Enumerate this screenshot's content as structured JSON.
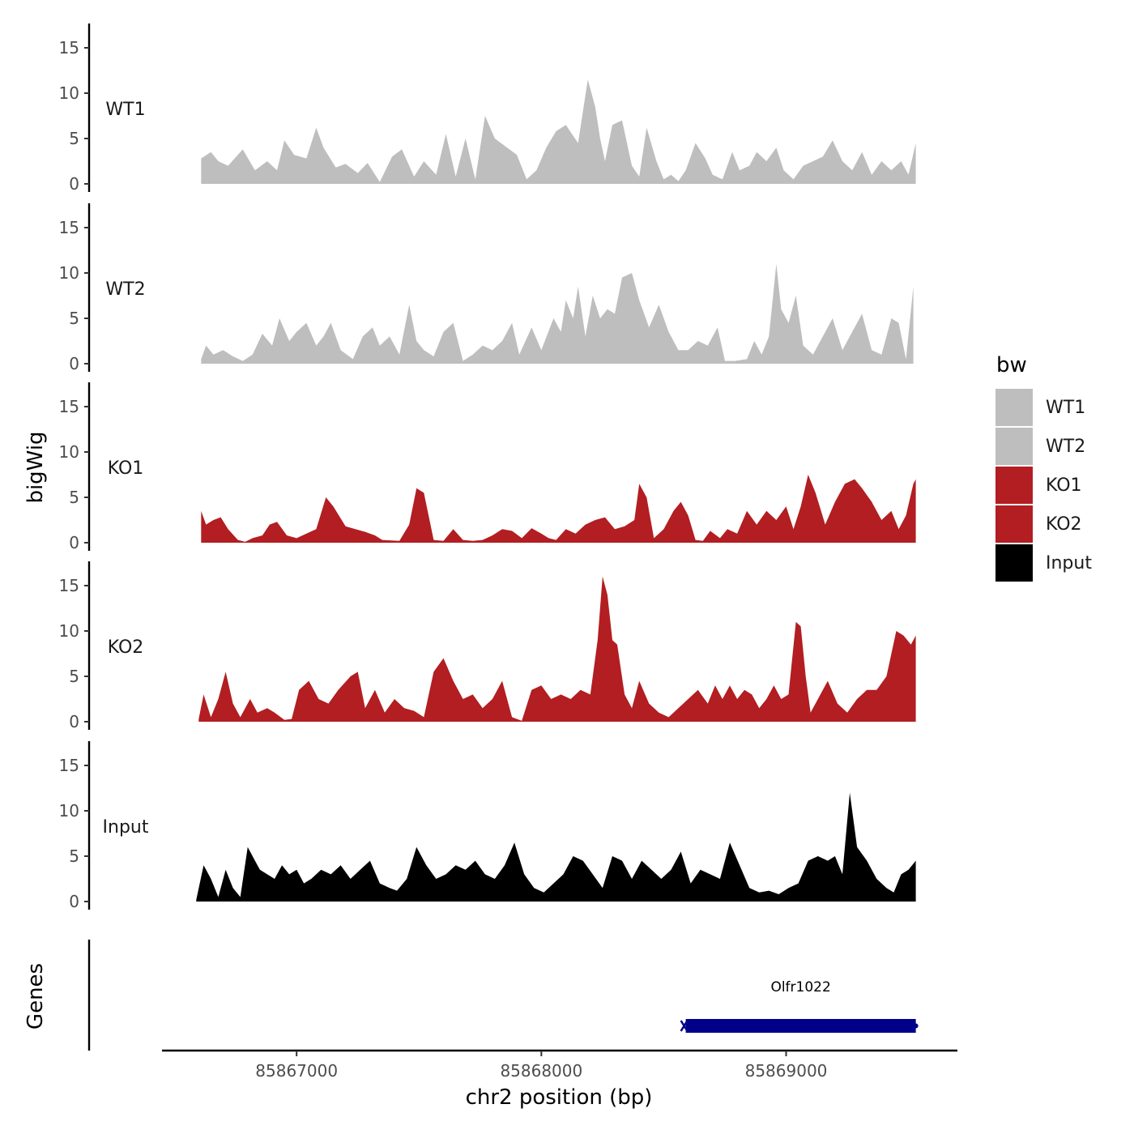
{
  "chart_data": {
    "type": "area",
    "ylabel": "bigWig",
    "xlabel": "chr2 position (bp)",
    "ylim": [
      0,
      17
    ],
    "yticks": [
      0,
      5,
      10,
      15
    ],
    "xlim": [
      85866450,
      85869700
    ],
    "xticks": [
      85867000,
      85868000,
      85869000
    ],
    "xtick_labels": [
      "85867000",
      "85868000",
      "85869000"
    ],
    "series": [
      {
        "name": "WT1",
        "color": "#bebebe",
        "x": [
          85866610,
          85866650,
          85866680,
          85866720,
          85866780,
          85866830,
          85866880,
          85866920,
          85866950,
          85866990,
          85867040,
          85867080,
          85867110,
          85867160,
          85867200,
          85867250,
          85867290,
          85867340,
          85867390,
          85867430,
          85867480,
          85867520,
          85867570,
          85867610,
          85867650,
          85867690,
          85867730,
          85867770,
          85867810,
          85867860,
          85867900,
          85867940,
          85867980,
          85868020,
          85868060,
          85868100,
          85868150,
          85868190,
          85868220,
          85868240,
          85868260,
          85868290,
          85868330,
          85868370,
          85868400,
          85868430,
          85868470,
          85868500,
          85868530,
          85868560,
          85868590,
          85868630,
          85868670,
          85868700,
          85868740,
          85868780,
          85868810,
          85868850,
          85868880,
          85868920,
          85868960,
          85868990,
          85869030,
          85869070,
          85869110,
          85869150,
          85869190,
          85869230,
          85869270,
          85869310,
          85869350,
          85869390,
          85869430,
          85869470,
          85869500,
          85869530
        ],
        "values": [
          2.8,
          3.5,
          2.5,
          2.0,
          3.8,
          1.5,
          2.5,
          1.5,
          4.8,
          3.2,
          2.8,
          6.2,
          4.0,
          1.8,
          2.2,
          1.2,
          2.3,
          0.2,
          3.0,
          3.8,
          0.8,
          2.5,
          1.0,
          5.5,
          0.8,
          5.0,
          0.5,
          7.5,
          5.0,
          4.0,
          3.2,
          0.5,
          1.5,
          4.0,
          5.8,
          6.5,
          4.5,
          11.5,
          8.5,
          5.0,
          2.5,
          6.5,
          7.0,
          2.0,
          0.8,
          6.2,
          2.5,
          0.5,
          1.0,
          0.3,
          1.5,
          4.5,
          2.8,
          1.0,
          0.5,
          3.5,
          1.5,
          2.0,
          3.5,
          2.5,
          4.0,
          1.5,
          0.5,
          2.0,
          2.5,
          3.0,
          4.8,
          2.5,
          1.5,
          3.5,
          1.0,
          2.5,
          1.5,
          2.5,
          1.0,
          4.5
        ]
      },
      {
        "name": "WT2",
        "color": "#bebebe",
        "x": [
          85866610,
          85866630,
          85866660,
          85866700,
          85866740,
          85866780,
          85866820,
          85866860,
          85866900,
          85866930,
          85866970,
          85867000,
          85867040,
          85867080,
          85867110,
          85867140,
          85867180,
          85867230,
          85867270,
          85867310,
          85867340,
          85867380,
          85867420,
          85867460,
          85867490,
          85867520,
          85867560,
          85867600,
          85867640,
          85867680,
          85867720,
          85867760,
          85867800,
          85867840,
          85867880,
          85867910,
          85867960,
          85868000,
          85868050,
          85868080,
          85868100,
          85868130,
          85868150,
          85868180,
          85868210,
          85868240,
          85868270,
          85868300,
          85868330,
          85868370,
          85868400,
          85868440,
          85868480,
          85868520,
          85868560,
          85868600,
          85868640,
          85868680,
          85868720,
          85868750,
          85868790,
          85868840,
          85868870,
          85868900,
          85868930,
          85868960,
          85868980,
          85869010,
          85869040,
          85869070,
          85869110,
          85869150,
          85869190,
          85869230,
          85869270,
          85869310,
          85869350,
          85869390,
          85869430,
          85869460,
          85869490,
          85869520
        ],
        "values": [
          0.5,
          2.0,
          1.0,
          1.5,
          0.8,
          0.3,
          1.0,
          3.3,
          2.0,
          5.0,
          2.5,
          3.5,
          4.5,
          2.0,
          3.0,
          4.5,
          1.5,
          0.5,
          3.0,
          4.0,
          2.0,
          3.0,
          1.0,
          6.5,
          2.5,
          1.5,
          0.8,
          3.5,
          4.5,
          0.3,
          1.0,
          2.0,
          1.5,
          2.5,
          4.5,
          1.0,
          4.0,
          1.5,
          5.0,
          3.5,
          7.0,
          5.0,
          8.5,
          3.0,
          7.5,
          5.0,
          6.0,
          5.5,
          9.5,
          10.0,
          7.0,
          4.0,
          6.5,
          3.5,
          1.5,
          1.5,
          2.5,
          2.0,
          4.0,
          0.3,
          0.3,
          0.5,
          2.5,
          1.0,
          3.0,
          11.0,
          6.0,
          4.5,
          7.5,
          2.0,
          1.0,
          3.0,
          5.0,
          1.5,
          3.5,
          5.5,
          1.5,
          1.0,
          5.0,
          4.5,
          0.5,
          8.5
        ]
      },
      {
        "name": "KO1",
        "color": "#b21e21",
        "x": [
          85866610,
          85866630,
          85866660,
          85866690,
          85866720,
          85866760,
          85866790,
          85866820,
          85866860,
          85866890,
          85866920,
          85866960,
          85867000,
          85867040,
          85867080,
          85867120,
          85867150,
          85867200,
          85867240,
          85867280,
          85867320,
          85867350,
          85867420,
          85867460,
          85867490,
          85867520,
          85867560,
          85867600,
          85867640,
          85867680,
          85867720,
          85867760,
          85867800,
          85867840,
          85867880,
          85867920,
          85867960,
          85868000,
          85868030,
          85868060,
          85868100,
          85868140,
          85868180,
          85868220,
          85868260,
          85868300,
          85868340,
          85868380,
          85868400,
          85868430,
          85868460,
          85868500,
          85868540,
          85868570,
          85868600,
          85868630,
          85868660,
          85868690,
          85868730,
          85868760,
          85868800,
          85868840,
          85868880,
          85868920,
          85868960,
          85869000,
          85869030,
          85869060,
          85869090,
          85869120,
          85869160,
          85869200,
          85869240,
          85869280,
          85869310,
          85869350,
          85869390,
          85869430,
          85869460,
          85869490,
          85869520,
          85869530
        ],
        "values": [
          3.5,
          2.0,
          2.5,
          2.8,
          1.5,
          0.3,
          0.1,
          0.5,
          0.8,
          2.0,
          2.3,
          0.8,
          0.5,
          1.0,
          1.5,
          5.0,
          4.0,
          1.8,
          1.5,
          1.2,
          0.8,
          0.3,
          0.2,
          2.0,
          6.0,
          5.5,
          0.3,
          0.2,
          1.5,
          0.3,
          0.2,
          0.3,
          0.8,
          1.5,
          1.3,
          0.5,
          1.6,
          1.0,
          0.5,
          0.3,
          1.5,
          1.0,
          2.0,
          2.5,
          2.8,
          1.5,
          1.8,
          2.5,
          6.5,
          5.0,
          0.5,
          1.5,
          3.5,
          4.5,
          3.0,
          0.3,
          0.2,
          1.3,
          0.5,
          1.5,
          1.0,
          3.5,
          2.0,
          3.5,
          2.5,
          4.0,
          1.5,
          4.0,
          7.5,
          5.5,
          2.0,
          4.5,
          6.5,
          7.0,
          6.0,
          4.5,
          2.5,
          3.5,
          1.5,
          3.0,
          6.5,
          7.0
        ]
      },
      {
        "name": "KO2",
        "color": "#b21e21",
        "x": [
          85866600,
          85866620,
          85866650,
          85866680,
          85866710,
          85866740,
          85866770,
          85866810,
          85866840,
          85866880,
          85866910,
          85866950,
          85866980,
          85867010,
          85867050,
          85867090,
          85867130,
          85867170,
          85867220,
          85867250,
          85867280,
          85867320,
          85867360,
          85867400,
          85867440,
          85867480,
          85867520,
          85867560,
          85867600,
          85867640,
          85867680,
          85867720,
          85867760,
          85867800,
          85867840,
          85867880,
          85867920,
          85867960,
          85868000,
          85868040,
          85868080,
          85868120,
          85868160,
          85868200,
          85868230,
          85868250,
          85868270,
          85868290,
          85868310,
          85868340,
          85868370,
          85868400,
          85868440,
          85868480,
          85868520,
          85868560,
          85868600,
          85868640,
          85868680,
          85868710,
          85868740,
          85868770,
          85868800,
          85868830,
          85868860,
          85868890,
          85868920,
          85868950,
          85868980,
          85869010,
          85869040,
          85869060,
          85869080,
          85869100,
          85869130,
          85869170,
          85869210,
          85869250,
          85869290,
          85869330,
          85869370,
          85869410,
          85869450,
          85869480,
          85869510,
          85869530
        ],
        "values": [
          0.3,
          3.0,
          0.5,
          2.5,
          5.5,
          2.0,
          0.5,
          2.5,
          1.0,
          1.5,
          1.0,
          0.2,
          0.3,
          3.5,
          4.5,
          2.5,
          2.0,
          3.5,
          5.0,
          5.5,
          1.5,
          3.5,
          1.0,
          2.5,
          1.5,
          1.2,
          0.5,
          5.5,
          7.0,
          4.5,
          2.5,
          3.0,
          1.5,
          2.5,
          4.5,
          0.5,
          0.1,
          3.5,
          4.0,
          2.5,
          3.0,
          2.5,
          3.5,
          3.0,
          9.0,
          16.0,
          14.0,
          9.0,
          8.5,
          3.0,
          1.5,
          4.5,
          2.0,
          1.0,
          0.5,
          1.5,
          2.5,
          3.5,
          2.0,
          4.0,
          2.5,
          4.0,
          2.5,
          3.5,
          3.0,
          1.5,
          2.5,
          4.0,
          2.5,
          3.0,
          11.0,
          10.5,
          5.0,
          1.0,
          2.5,
          4.5,
          2.0,
          1.0,
          2.5,
          3.5,
          3.5,
          5.0,
          10.0,
          9.5,
          8.5,
          9.5
        ]
      },
      {
        "name": "Input",
        "color": "#000000",
        "x": [
          85866590,
          85866620,
          85866650,
          85866680,
          85866710,
          85866740,
          85866770,
          85866800,
          85866830,
          85866850,
          85866880,
          85866910,
          85866940,
          85866970,
          85867000,
          85867030,
          85867060,
          85867100,
          85867140,
          85867180,
          85867220,
          85867260,
          85867300,
          85867340,
          85867380,
          85867410,
          85867450,
          85867490,
          85867530,
          85867570,
          85867610,
          85867650,
          85867690,
          85867730,
          85867770,
          85867810,
          85867850,
          85867890,
          85867930,
          85867970,
          85868010,
          85868050,
          85868090,
          85868130,
          85868170,
          85868210,
          85868250,
          85868290,
          85868330,
          85868370,
          85868410,
          85868450,
          85868490,
          85868530,
          85868570,
          85868610,
          85868650,
          85868690,
          85868730,
          85868770,
          85868810,
          85868850,
          85868890,
          85868930,
          85868970,
          85869010,
          85869050,
          85869090,
          85869130,
          85869170,
          85869200,
          85869230,
          85869260,
          85869290,
          85869330,
          85869370,
          85869410,
          85869440,
          85869470,
          85869500,
          85869530
        ],
        "values": [
          0.2,
          4.0,
          2.5,
          0.5,
          3.5,
          1.5,
          0.5,
          6.0,
          4.5,
          3.5,
          3.0,
          2.5,
          4.0,
          3.0,
          3.5,
          2.0,
          2.5,
          3.5,
          3.0,
          4.0,
          2.5,
          3.5,
          4.5,
          2.0,
          1.5,
          1.2,
          2.5,
          6.0,
          4.0,
          2.5,
          3.0,
          4.0,
          3.5,
          4.5,
          3.0,
          2.5,
          4.0,
          6.5,
          3.0,
          1.5,
          1.0,
          2.0,
          3.0,
          5.0,
          4.5,
          3.0,
          1.5,
          5.0,
          4.5,
          2.5,
          4.5,
          3.5,
          2.5,
          3.5,
          5.5,
          2.0,
          3.5,
          3.0,
          2.5,
          6.5,
          4.0,
          1.5,
          1.0,
          1.2,
          0.8,
          1.5,
          2.0,
          4.5,
          5.0,
          4.5,
          5.0,
          3.0,
          12.0,
          6.0,
          4.5,
          2.5,
          1.5,
          1.0,
          3.0,
          3.5,
          4.5
        ]
      }
    ],
    "gene_track": {
      "label": "Genes",
      "genes": [
        {
          "name": "Olfr1022",
          "start": 85868590,
          "end": 85869530,
          "strand": "-",
          "color": "#00008b"
        }
      ]
    },
    "legend": {
      "title": "bw",
      "position": "right",
      "items": [
        {
          "label": "WT1",
          "color": "#bebebe"
        },
        {
          "label": "WT2",
          "color": "#bebebe"
        },
        {
          "label": "KO1",
          "color": "#b21e21"
        },
        {
          "label": "KO2",
          "color": "#b21e21"
        },
        {
          "label": "Input",
          "color": "#000000"
        }
      ]
    },
    "grid": false
  }
}
